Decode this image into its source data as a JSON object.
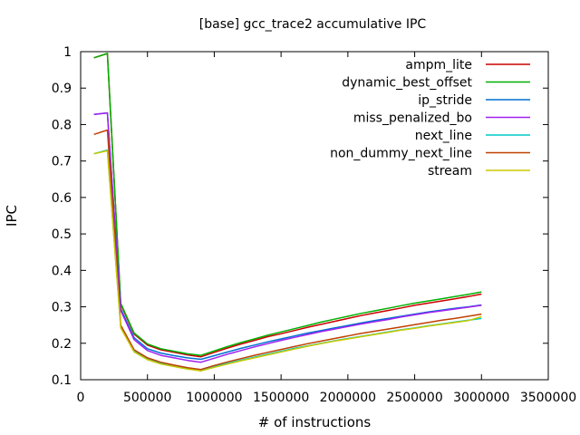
{
  "chart_data": {
    "type": "line",
    "title": "[base] gcc_trace2 accumulative IPC",
    "xlabel": "# of instructions",
    "ylabel": "IPC",
    "xlim": [
      0,
      3500000
    ],
    "ylim": [
      0.1,
      1.0
    ],
    "xticks": [
      0,
      500000,
      1000000,
      1500000,
      2000000,
      2500000,
      3000000,
      3500000
    ],
    "xtick_labels": [
      "0",
      "500000",
      "1000000",
      "1500000",
      "2000000",
      "2500000",
      "3000000",
      "3500000"
    ],
    "yticks": [
      0.1,
      0.2,
      0.3,
      0.4,
      0.5,
      0.6,
      0.7,
      0.8,
      0.9,
      1.0
    ],
    "ytick_labels": [
      "0.1",
      "0.2",
      "0.3",
      "0.4",
      "0.5",
      "0.6",
      "0.7",
      "0.8",
      "0.9",
      "1"
    ],
    "grid": false,
    "legend_position": "top-right",
    "x": [
      100000,
      200000,
      300000,
      400000,
      500000,
      600000,
      700000,
      800000,
      900000,
      1000000,
      1100000,
      1200000,
      1300000,
      1400000,
      1500000,
      1600000,
      1700000,
      1800000,
      1900000,
      2000000,
      2100000,
      2200000,
      2300000,
      2400000,
      2500000,
      2600000,
      2700000,
      2800000,
      2900000,
      3000000
    ],
    "series": [
      {
        "name": "ampm_lite",
        "color": "#cc0000",
        "values": [
          0.983,
          0.995,
          0.307,
          0.225,
          0.195,
          0.182,
          0.175,
          0.168,
          0.163,
          0.175,
          0.187,
          0.198,
          0.208,
          0.218,
          0.226,
          0.235,
          0.244,
          0.252,
          0.26,
          0.268,
          0.276,
          0.283,
          0.29,
          0.297,
          0.304,
          0.31,
          0.316,
          0.322,
          0.328,
          0.335
        ]
      },
      {
        "name": "dynamic_best_offset",
        "color": "#00b000",
        "values": [
          0.983,
          0.995,
          0.31,
          0.228,
          0.198,
          0.185,
          0.178,
          0.171,
          0.167,
          0.179,
          0.191,
          0.202,
          0.212,
          0.222,
          0.231,
          0.24,
          0.249,
          0.258,
          0.266,
          0.274,
          0.282,
          0.289,
          0.296,
          0.303,
          0.31,
          0.316,
          0.322,
          0.328,
          0.334,
          0.341
        ]
      },
      {
        "name": "ip_stride",
        "color": "#0070d0",
        "values": [
          0.828,
          0.832,
          0.295,
          0.215,
          0.185,
          0.173,
          0.166,
          0.16,
          0.156,
          0.166,
          0.176,
          0.186,
          0.195,
          0.204,
          0.212,
          0.22,
          0.228,
          0.235,
          0.242,
          0.249,
          0.256,
          0.262,
          0.268,
          0.274,
          0.28,
          0.286,
          0.291,
          0.296,
          0.3,
          0.305
        ]
      },
      {
        "name": "miss_penalized_bo",
        "color": "#a020f0",
        "values": [
          0.828,
          0.832,
          0.29,
          0.21,
          0.18,
          0.167,
          0.16,
          0.153,
          0.148,
          0.159,
          0.17,
          0.18,
          0.19,
          0.199,
          0.208,
          0.216,
          0.224,
          0.232,
          0.239,
          0.246,
          0.253,
          0.259,
          0.265,
          0.272,
          0.278,
          0.284,
          0.289,
          0.294,
          0.299,
          0.304
        ]
      },
      {
        "name": "next_line",
        "color": "#00c8c8",
        "values": [
          0.72,
          0.73,
          0.245,
          0.178,
          0.158,
          0.146,
          0.138,
          0.131,
          0.126,
          0.136,
          0.145,
          0.154,
          0.162,
          0.17,
          0.178,
          0.186,
          0.193,
          0.2,
          0.207,
          0.213,
          0.219,
          0.225,
          0.231,
          0.237,
          0.242,
          0.248,
          0.253,
          0.258,
          0.263,
          0.268
        ]
      },
      {
        "name": "non_dummy_next_line",
        "color": "#c04000",
        "values": [
          0.773,
          0.785,
          0.25,
          0.182,
          0.16,
          0.148,
          0.14,
          0.133,
          0.128,
          0.139,
          0.149,
          0.158,
          0.167,
          0.175,
          0.183,
          0.191,
          0.199,
          0.206,
          0.213,
          0.22,
          0.227,
          0.233,
          0.239,
          0.245,
          0.251,
          0.257,
          0.263,
          0.268,
          0.274,
          0.28
        ]
      },
      {
        "name": "stream",
        "color": "#c8c800",
        "values": [
          0.72,
          0.728,
          0.242,
          0.176,
          0.155,
          0.143,
          0.136,
          0.129,
          0.124,
          0.134,
          0.143,
          0.152,
          0.16,
          0.168,
          0.176,
          0.184,
          0.192,
          0.199,
          0.206,
          0.212,
          0.218,
          0.224,
          0.23,
          0.236,
          0.241,
          0.247,
          0.252,
          0.257,
          0.262,
          0.273
        ]
      }
    ]
  }
}
